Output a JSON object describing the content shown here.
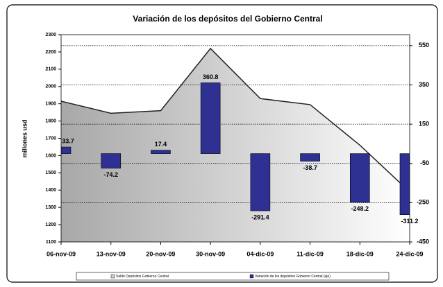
{
  "chart_data": {
    "type": "combo",
    "title": "Variación de los depósitos del Gobierno Central",
    "ylabel": "millones usd",
    "categories": [
      "06-nov-09",
      "13-nov-09",
      "20-nov-09",
      "30-nov-09",
      "04-dic-09",
      "11-dic-09",
      "18-dic-09",
      "24-dic-09"
    ],
    "series": [
      {
        "name": "Saldo Depósitos Gobierno Central",
        "type": "area",
        "color": "#b0b0b0",
        "values": [
          1915,
          1845,
          1860,
          2220,
          1930,
          1895,
          1660,
          1390
        ]
      },
      {
        "name": "Variación de los depósitos Gobierno Central (eje)",
        "type": "bar",
        "axis": "y2",
        "color": "#2e3192",
        "values": [
          33.7,
          -74.2,
          17.4,
          360.8,
          -291.4,
          -38.7,
          -248.2,
          -311.2
        ]
      }
    ],
    "ylim": [
      1100,
      2300
    ],
    "yticks": [
      1100,
      1200,
      1300,
      1400,
      1500,
      1600,
      1700,
      1800,
      1900,
      2000,
      2100,
      2200,
      2300
    ],
    "y2lim": [
      -450,
      606
    ],
    "y2ticks": [
      -450,
      -250,
      -50,
      150,
      350,
      550
    ],
    "grid": true,
    "legend": "bottom"
  }
}
